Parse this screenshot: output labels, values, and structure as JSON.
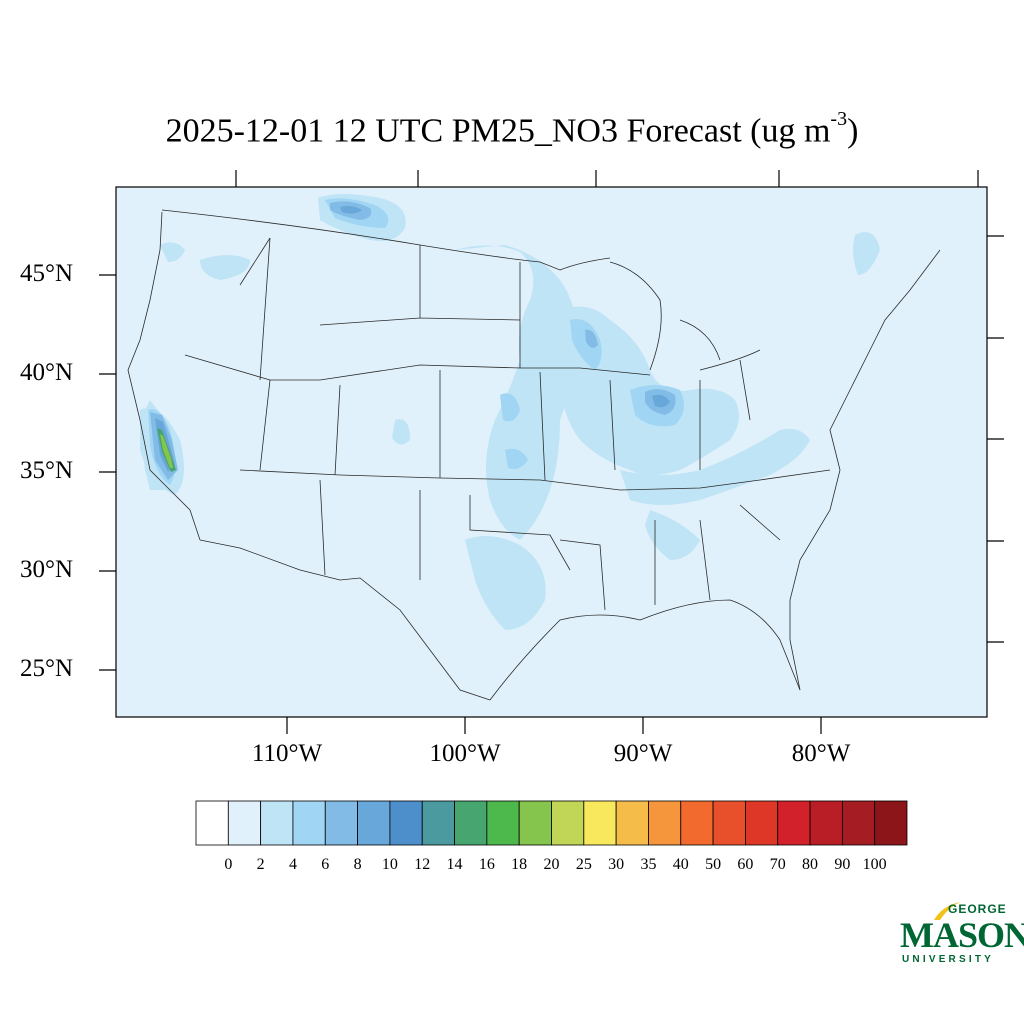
{
  "title": {
    "main": "2025-12-01 12 UTC PM25_NO3 Forecast (ug m",
    "sup": "-3",
    "close": ")"
  },
  "map": {
    "projection": "lambert-conformal",
    "region": "Continental United States",
    "lat_labels": [
      "45°N",
      "40°N",
      "35°N",
      "30°N",
      "25°N"
    ],
    "lon_labels": [
      "110°W",
      "100°W",
      "90°W",
      "80°W"
    ],
    "background_color": "#e0f1fb"
  },
  "colorbar": {
    "labels": [
      "0",
      "2",
      "4",
      "6",
      "8",
      "10",
      "12",
      "14",
      "16",
      "18",
      "20",
      "25",
      "30",
      "35",
      "40",
      "50",
      "60",
      "70",
      "80",
      "90",
      "100"
    ],
    "colors": [
      "#ffffff",
      "#e0f1fb",
      "#bfe4f6",
      "#a0d5f3",
      "#82bce6",
      "#68a7da",
      "#4d8fca",
      "#4b9aa0",
      "#47a56f",
      "#4db84c",
      "#86c54d",
      "#c1d657",
      "#f8e85d",
      "#f6bc4a",
      "#f6963c",
      "#f26a2e",
      "#e8502c",
      "#de3728",
      "#d2212b",
      "#b91d26",
      "#a51c22",
      "#8b1519"
    ]
  },
  "logo": {
    "line1": "GEORGE",
    "line2": "MASON",
    "line3": "UNIVERSITY",
    "color": "#006633",
    "accent": "#f2c21b"
  }
}
